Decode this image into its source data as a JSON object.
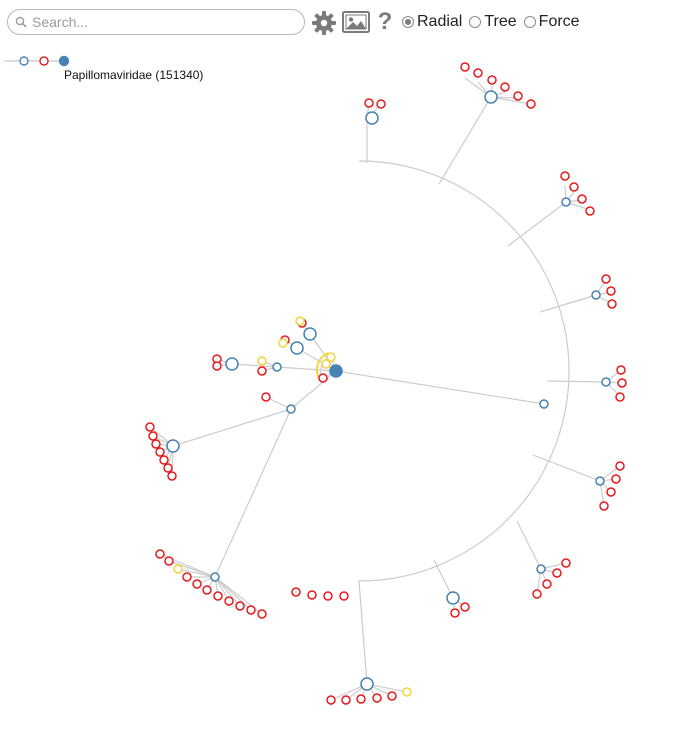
{
  "search": {
    "placeholder": "Search..."
  },
  "toolbar": {
    "icons": [
      "gear-icon",
      "image-icon",
      "help-icon"
    ],
    "help_glyph": "?"
  },
  "layouts": [
    {
      "label": "Radial",
      "selected": true
    },
    {
      "label": "Tree",
      "selected": false
    },
    {
      "label": "Force",
      "selected": false
    }
  ],
  "breadcrumb": {
    "current_label": "Papillomaviridae (151340)"
  },
  "colors": {
    "link": "#cccccc",
    "internal_node": "#4682b4",
    "leaf_node": "#e41a1c",
    "highlight_node": "#f2d53c",
    "root_fill": "#4682b4"
  }
}
